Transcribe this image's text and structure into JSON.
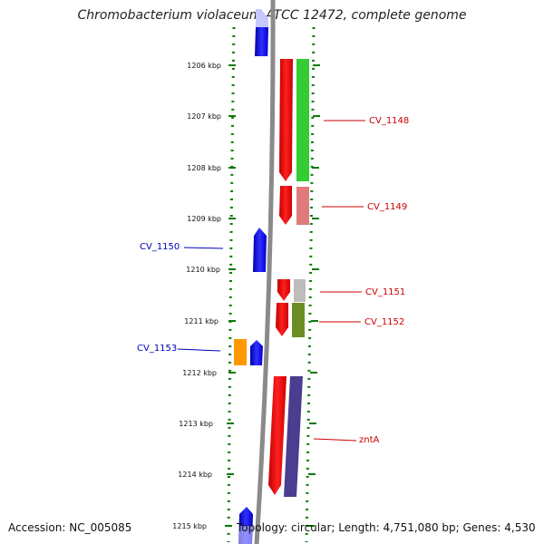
{
  "title": "Chromobacterium violaceum ATCC 12472, complete genome",
  "footer": {
    "accession": "Accession: NC_005085",
    "summary": "Topology: circular; Length: 4,751,080 bp; Genes: 4,530"
  },
  "ruler": {
    "unit": "kbp",
    "ticks": [
      "1206 kbp",
      "1207 kbp",
      "1208 kbp",
      "1209 kbp",
      "1210 kbp",
      "1211 kbp",
      "1212 kbp",
      "1213 kbp",
      "1214 kbp",
      "1215 kbp"
    ]
  },
  "gene_labels": [
    {
      "id": "CV_1148",
      "color": "#cc0000"
    },
    {
      "id": "CV_1149",
      "color": "#cc0000"
    },
    {
      "id": "CV_1150",
      "color": "#0000bb"
    },
    {
      "id": "CV_1151",
      "color": "#cc0000"
    },
    {
      "id": "CV_1152",
      "color": "#cc0000"
    },
    {
      "id": "CV_1153",
      "color": "#0000bb"
    },
    {
      "id": "zntA",
      "color": "#cc0000"
    }
  ],
  "colors": {
    "forward_gene": "#0000ff",
    "reverse_gene": "#ff0000",
    "backbone": "#8a8a8a",
    "tick": "#0a7a0a",
    "cog_green": "#33cc33",
    "cog_pink": "#e07a7a",
    "cog_gray": "#bdbdbd",
    "cog_olive": "#6b8e23",
    "cog_orange": "#ff9900",
    "cog_purple": "#4b3d8f"
  }
}
